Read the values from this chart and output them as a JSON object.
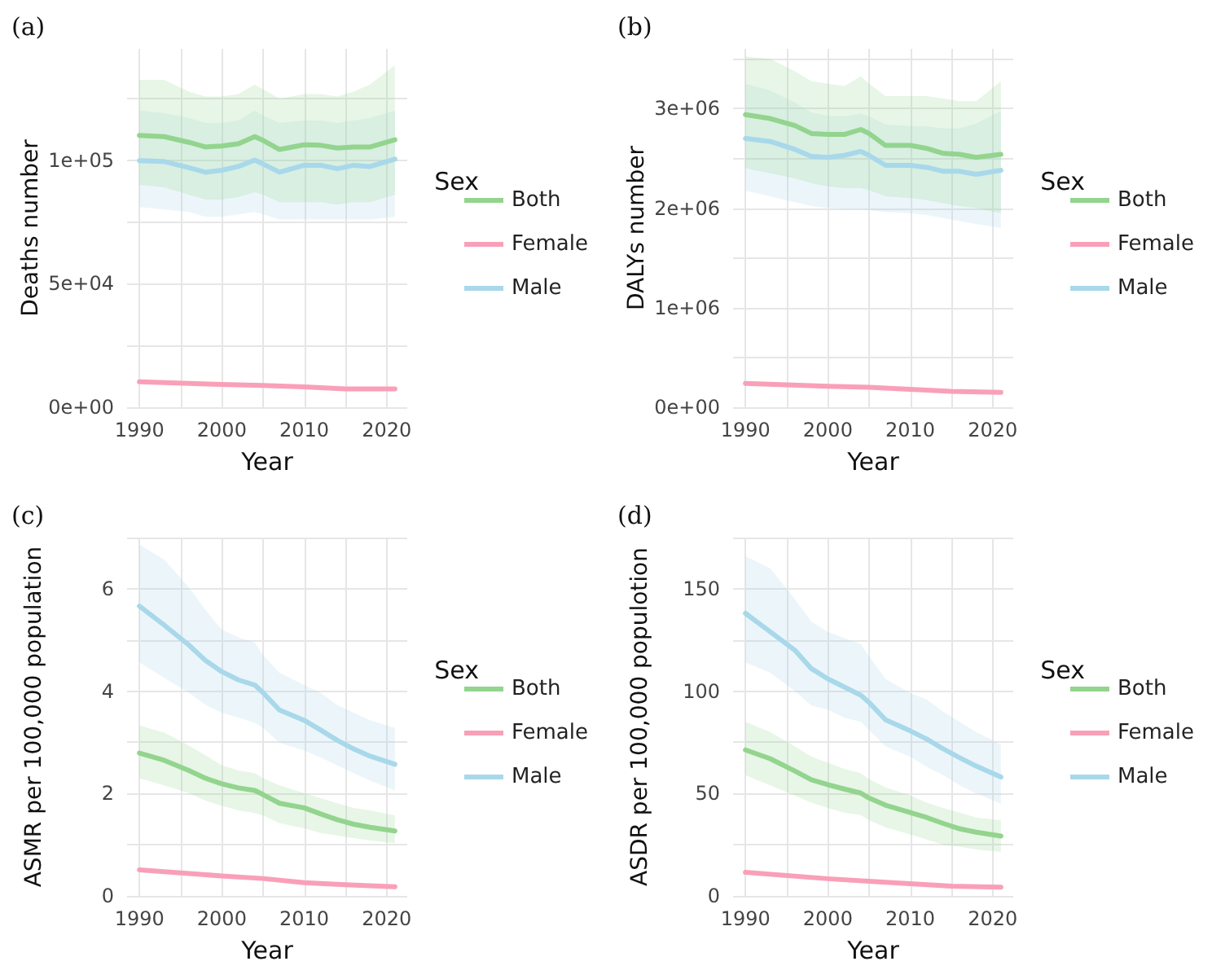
{
  "chart_data": [
    {
      "type": "line",
      "title": "(a)",
      "xlabel": "Year",
      "ylabel": "Deaths number",
      "legend_title": "Sex",
      "legend": "right",
      "grid": true,
      "marker": "none",
      "line_style": "solid",
      "x": [
        1990,
        1993,
        1996,
        1998,
        2000,
        2002,
        2004,
        2005,
        2007,
        2010,
        2012,
        2014,
        2016,
        2018,
        2021
      ],
      "xlim": [
        1988.5,
        2022.5
      ],
      "xticks": [
        1990,
        {
          "value": 1995,
          "label": null
        },
        2000,
        {
          "value": 2005,
          "label": null
        },
        2010,
        {
          "value": 2015,
          "label": null
        },
        2020
      ],
      "ylim": [
        0,
        145000
      ],
      "yticks": [
        {
          "value": 0,
          "label": "0e+00"
        },
        {
          "value": 25000,
          "label": null
        },
        {
          "value": 50000,
          "label": "5e+04"
        },
        {
          "value": 75000,
          "label": null
        },
        {
          "value": 100000,
          "label": "1e+05"
        },
        {
          "value": 125000,
          "label": null
        }
      ],
      "series": [
        {
          "name": "Both",
          "color": "#93d48e",
          "values": [
            110000,
            109500,
            107200,
            105300,
            105700,
            106600,
            109500,
            108000,
            104300,
            106200,
            106000,
            104900,
            105300,
            105300,
            108200
          ],
          "lower": [
            90000,
            89000,
            86000,
            84000,
            84000,
            85000,
            87000,
            86000,
            83000,
            83000,
            83000,
            82000,
            83000,
            83000,
            86000
          ],
          "upper": [
            132500,
            132500,
            127700,
            125700,
            125700,
            126700,
            130600,
            128700,
            124800,
            126700,
            126700,
            125700,
            127700,
            130600,
            138400
          ]
        },
        {
          "name": "Female",
          "color": "#f9a0b8",
          "x": [
            1990,
            2000,
            2005,
            2010,
            2015,
            2021
          ],
          "values": [
            10300,
            9200,
            8800,
            8200,
            7400,
            7400
          ]
        },
        {
          "name": "Male",
          "color": "#a8d8ea",
          "values": [
            99800,
            99400,
            96900,
            95100,
            95900,
            97400,
            100000,
            98400,
            95100,
            97900,
            97900,
            96500,
            97900,
            97400,
            100400
          ],
          "lower": [
            81000,
            80000,
            79000,
            77000,
            77000,
            78000,
            79000,
            78000,
            76000,
            76000,
            76000,
            76000,
            76000,
            76000,
            77000
          ],
          "upper": [
            120000,
            119000,
            117000,
            115000,
            115000,
            116000,
            120000,
            118000,
            115000,
            116000,
            116000,
            115000,
            116000,
            117000,
            120000
          ]
        }
      ]
    },
    {
      "type": "line",
      "title": "(b)",
      "xlabel": "Year",
      "ylabel": "DALYs number",
      "legend_title": "Sex",
      "legend": "right",
      "grid": true,
      "marker": "none",
      "line_style": "solid",
      "x": [
        1990,
        1993,
        1996,
        1998,
        2000,
        2002,
        2004,
        2005,
        2007,
        2010,
        2012,
        2014,
        2016,
        2018,
        2021
      ],
      "xlim": [
        1988.5,
        2022.5
      ],
      "xticks": [
        1990,
        {
          "value": 1995,
          "label": null
        },
        2000,
        {
          "value": 2005,
          "label": null
        },
        2010,
        {
          "value": 2015,
          "label": null
        },
        2020
      ],
      "ylim": [
        0,
        3600000
      ],
      "yticks": [
        {
          "value": 0,
          "label": "0e+00"
        },
        {
          "value": 500000,
          "label": null
        },
        {
          "value": 1000000,
          "label": "1e+06"
        },
        {
          "value": 1500000,
          "label": null
        },
        {
          "value": 2000000,
          "label": "2e+06"
        },
        {
          "value": 2500000,
          "label": null
        },
        {
          "value": 3000000,
          "label": "3e+06"
        },
        {
          "value": 3500000,
          "label": null
        }
      ],
      "series": [
        {
          "name": "Both",
          "color": "#93d48e",
          "values": [
            2940000,
            2900000,
            2830000,
            2750000,
            2740000,
            2740000,
            2790000,
            2750000,
            2630000,
            2630000,
            2600000,
            2550000,
            2540000,
            2510000,
            2540000
          ],
          "lower": [
            2400000,
            2350000,
            2300000,
            2250000,
            2220000,
            2200000,
            2200000,
            2180000,
            2120000,
            2100000,
            2080000,
            2050000,
            2020000,
            2000000,
            1950000
          ],
          "upper": [
            3525000,
            3500000,
            3375000,
            3275000,
            3250000,
            3225000,
            3325000,
            3250000,
            3125000,
            3125000,
            3125000,
            3100000,
            3075000,
            3075000,
            3275000
          ]
        },
        {
          "name": "Female",
          "color": "#f9a0b8",
          "x": [
            1990,
            2000,
            2005,
            2010,
            2015,
            2021
          ],
          "values": [
            240000,
            210000,
            200000,
            180000,
            160000,
            150000
          ]
        },
        {
          "name": "Male",
          "color": "#a8d8ea",
          "values": [
            2700000,
            2670000,
            2590000,
            2520000,
            2510000,
            2530000,
            2570000,
            2530000,
            2430000,
            2430000,
            2410000,
            2370000,
            2370000,
            2340000,
            2380000
          ],
          "lower": [
            2175000,
            2120000,
            2060000,
            2020000,
            2000000,
            1990000,
            1990000,
            1980000,
            1960000,
            1950000,
            1930000,
            1900000,
            1870000,
            1840000,
            1800000
          ],
          "upper": [
            3250000,
            3180000,
            3060000,
            2960000,
            2925000,
            2920000,
            2950000,
            2920000,
            2840000,
            2825000,
            2820000,
            2800000,
            2800000,
            2850000,
            2975000
          ]
        }
      ]
    },
    {
      "type": "line",
      "title": "(c)",
      "xlabel": "Year",
      "ylabel": "ASMR per 100,000 population",
      "legend_title": "Sex",
      "legend": "right",
      "grid": true,
      "marker": "none",
      "line_style": "solid",
      "x": [
        1990,
        1993,
        1996,
        1998,
        2000,
        2002,
        2004,
        2005,
        2007,
        2010,
        2012,
        2014,
        2016,
        2018,
        2021
      ],
      "xlim": [
        1988.5,
        2022.5
      ],
      "xticks": [
        1990,
        {
          "value": 1995,
          "label": null
        },
        2000,
        {
          "value": 2005,
          "label": null
        },
        2010,
        {
          "value": 2015,
          "label": null
        },
        2020
      ],
      "ylim": [
        0,
        7
      ],
      "yticks": [
        0,
        {
          "value": 1,
          "label": null
        },
        2,
        {
          "value": 3,
          "label": null
        },
        4,
        {
          "value": 5,
          "label": null
        },
        6,
        {
          "value": 7,
          "label": null
        }
      ],
      "series": [
        {
          "name": "Both",
          "color": "#93d48e",
          "values": [
            2.79,
            2.65,
            2.45,
            2.3,
            2.19,
            2.11,
            2.06,
            1.98,
            1.81,
            1.72,
            1.6,
            1.49,
            1.4,
            1.34,
            1.27
          ],
          "lower": [
            2.3,
            2.16,
            2.01,
            1.86,
            1.76,
            1.67,
            1.62,
            1.57,
            1.42,
            1.32,
            1.23,
            1.18,
            1.13,
            1.08,
            1.03
          ],
          "upper": [
            3.33,
            3.19,
            2.94,
            2.75,
            2.55,
            2.45,
            2.4,
            2.3,
            2.16,
            2.01,
            1.91,
            1.81,
            1.72,
            1.67,
            1.57
          ]
        },
        {
          "name": "Female",
          "color": "#f9a0b8",
          "x": [
            1990,
            2000,
            2005,
            2010,
            2015,
            2021
          ],
          "values": [
            0.51,
            0.39,
            0.34,
            0.26,
            0.22,
            0.18
          ]
        },
        {
          "name": "Male",
          "color": "#a8d8ea",
          "values": [
            5.66,
            5.29,
            4.9,
            4.6,
            4.38,
            4.22,
            4.12,
            3.97,
            3.63,
            3.43,
            3.24,
            3.04,
            2.87,
            2.73,
            2.57
          ],
          "lower": [
            4.56,
            4.26,
            3.97,
            3.73,
            3.58,
            3.48,
            3.38,
            3.28,
            2.99,
            2.84,
            2.7,
            2.55,
            2.4,
            2.25,
            2.06
          ],
          "upper": [
            6.86,
            6.57,
            6.03,
            5.59,
            5.2,
            5.05,
            4.95,
            4.7,
            4.36,
            4.12,
            3.97,
            3.73,
            3.58,
            3.43,
            3.28
          ]
        }
      ]
    },
    {
      "type": "line",
      "title": "(d)",
      "xlabel": "Year",
      "ylabel": "ASDR per 100,000 populotion",
      "legend_title": "Sex",
      "legend": "right",
      "grid": true,
      "marker": "none",
      "line_style": "solid",
      "x": [
        1990,
        1993,
        1996,
        1998,
        2000,
        2002,
        2004,
        2005,
        2007,
        2010,
        2012,
        2014,
        2016,
        2018,
        2021
      ],
      "xlim": [
        1988.5,
        2022.5
      ],
      "xticks": [
        1990,
        {
          "value": 1995,
          "label": null
        },
        2000,
        {
          "value": 2005,
          "label": null
        },
        2010,
        {
          "value": 2015,
          "label": null
        },
        2020
      ],
      "ylim": [
        0,
        175
      ],
      "yticks": [
        0,
        {
          "value": 25,
          "label": null
        },
        50,
        {
          "value": 75,
          "label": null
        },
        100,
        {
          "value": 125,
          "label": null
        },
        150,
        {
          "value": 175,
          "label": null
        }
      ],
      "series": [
        {
          "name": "Both",
          "color": "#93d48e",
          "values": [
            71.3,
            67,
            61,
            56.7,
            54.3,
            52.2,
            50.2,
            47.8,
            44.3,
            40.7,
            38.3,
            35.4,
            32.8,
            31.1,
            29.2
          ],
          "lower": [
            59,
            54,
            49,
            45.5,
            43,
            40.7,
            39.5,
            37,
            33.5,
            30,
            27.5,
            25,
            24,
            22.7,
            21.5
          ],
          "upper": [
            85,
            80,
            73,
            68,
            65,
            62,
            60,
            57,
            53,
            49,
            45.5,
            43,
            40.7,
            38.3,
            37
          ]
        },
        {
          "name": "Female",
          "color": "#f9a0b8",
          "x": [
            1990,
            2000,
            2005,
            2010,
            2015,
            2021
          ],
          "values": [
            11.5,
            8.4,
            7.2,
            6,
            4.8,
            4.3
          ]
        },
        {
          "name": "Male",
          "color": "#a8d8ea",
          "values": [
            138,
            129,
            120,
            111,
            106,
            102,
            98,
            94.5,
            86,
            80.6,
            76.6,
            71.8,
            67.5,
            63.4,
            58.1
          ],
          "lower": [
            114,
            109,
            100,
            93,
            91,
            87,
            85,
            81,
            73,
            68,
            63,
            59,
            54,
            50,
            45
          ],
          "upper": [
            166,
            160,
            145,
            134,
            129,
            126,
            123,
            117,
            106,
            99,
            96,
            90,
            85,
            80,
            74
          ]
        }
      ]
    }
  ]
}
